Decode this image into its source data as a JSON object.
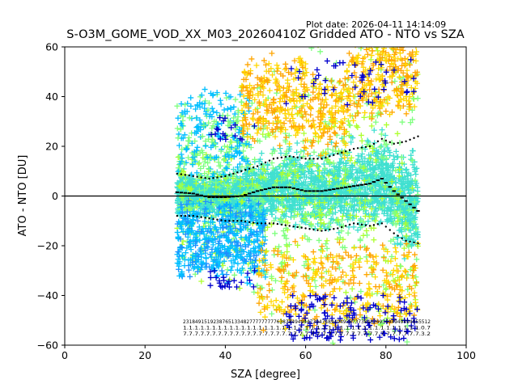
{
  "header": {
    "plot_date": "Plot date: 2026-04-11 14:14:09",
    "title": "S-O3M_GOME_VOD_XX_M03_20260410Z Gridded ATO - NTO vs SZA"
  },
  "chart_data": {
    "type": "scatter",
    "title": "S-O3M_GOME_VOD_XX_M03_20260410Z Gridded ATO - NTO vs SZA",
    "xlabel": "SZA [degree]",
    "ylabel": "ATO - NTO [DU]",
    "xlim": [
      0,
      100
    ],
    "ylim": [
      -60,
      60
    ],
    "xticks": [
      0,
      20,
      40,
      60,
      80,
      100
    ],
    "yticks": [
      -60,
      -40,
      -20,
      0,
      20,
      40,
      60
    ],
    "grid": false,
    "marker": "+",
    "zero_line": 0,
    "color_scale": [
      "#0000cd",
      "#1e90ff",
      "#00bfff",
      "#40e0d0",
      "#7fff7f",
      "#adff2f",
      "#ffd700",
      "#ffa500"
    ],
    "envelope": [
      {
        "x": 28,
        "median": 1.5,
        "upper": 9,
        "lower": -8
      },
      {
        "x": 32,
        "median": 1,
        "upper": 8,
        "lower": -8
      },
      {
        "x": 36,
        "median": -0.5,
        "upper": 7,
        "lower": -9
      },
      {
        "x": 40,
        "median": -0.5,
        "upper": 8,
        "lower": -10
      },
      {
        "x": 44,
        "median": 0,
        "upper": 10,
        "lower": -10
      },
      {
        "x": 48,
        "median": 2,
        "upper": 12,
        "lower": -11
      },
      {
        "x": 52,
        "median": 3.5,
        "upper": 15,
        "lower": -11
      },
      {
        "x": 56,
        "median": 3.5,
        "upper": 16,
        "lower": -12
      },
      {
        "x": 60,
        "median": 2,
        "upper": 15,
        "lower": -13
      },
      {
        "x": 64,
        "median": 2,
        "upper": 15,
        "lower": -14
      },
      {
        "x": 68,
        "median": 3,
        "upper": 17,
        "lower": -13
      },
      {
        "x": 72,
        "median": 4,
        "upper": 19,
        "lower": -11
      },
      {
        "x": 76,
        "median": 5,
        "upper": 20,
        "lower": -12
      },
      {
        "x": 79,
        "median": 7,
        "upper": 23,
        "lower": -11
      },
      {
        "x": 82,
        "median": 2,
        "upper": 21,
        "lower": -15
      },
      {
        "x": 85,
        "median": -2,
        "upper": 22,
        "lower": -18
      },
      {
        "x": 88,
        "median": -6,
        "upper": 24,
        "lower": -19
      }
    ],
    "count_labels": [
      "2318491519238765133482777777777638384949447394748949493873738483493494949494955512",
      "1.1.1.1.1.1.1.1.1.1.1.1.1.1.1.1.1.1.1.1.1.1.1.1.1.1.1.1.1.1.1.1.1.1.1.1.1.1.1.1.1.0.7",
      "7.7.7.7.7.7.7.7.7.7.7.7.7.7.7.7.7.7.7.7.7.7.7.7.7.7.7.7.7.7.7.7.7.7.7.7.7.7.7.7.7.3.2"
    ]
  }
}
